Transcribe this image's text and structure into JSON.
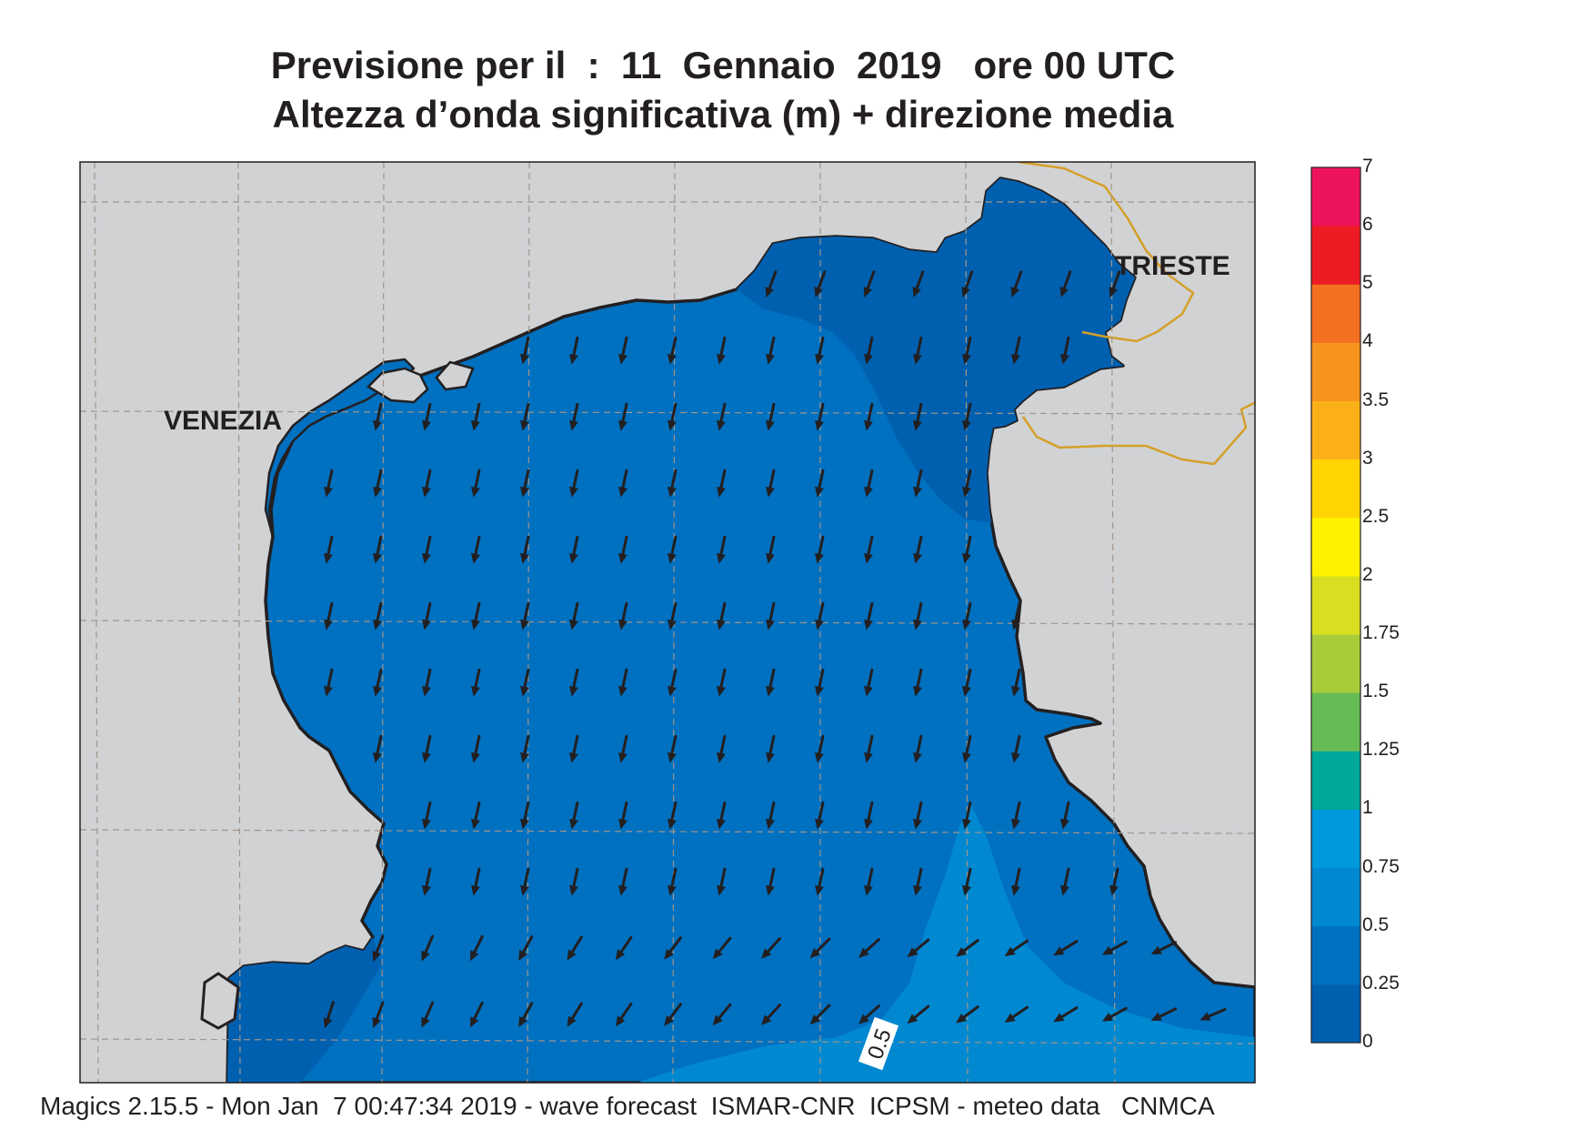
{
  "title_line1": "Previsione per il  :  11  Gennaio  2019   ore 00 UTC",
  "title_line2": "Altezza d’onda significativa (m) + direzione media",
  "footer": "Magics 2.15.5 - Mon Jan  7 00:47:34 2019 - wave forecast  ISMAR-CNR  ICPSM - meteo data   CNMCA",
  "cities": [
    {
      "name": "VENEZIA"
    },
    {
      "name": "TRIESTE"
    }
  ],
  "contour_label": "0.5",
  "wave_direction_default": "SSW",
  "colorbar": {
    "levels": [
      "0",
      "0.25",
      "0.5",
      "0.75",
      "1",
      "1.25",
      "1.5",
      "1.75",
      "2",
      "2.5",
      "3",
      "3.5",
      "4",
      "5",
      "6",
      "7"
    ],
    "colors": [
      "#0060b0",
      "#0070c0",
      "#0088d0",
      "#0098dc",
      "#00a89c",
      "#66bb55",
      "#a6cc3a",
      "#d8de20",
      "#fff200",
      "#ffd400",
      "#fbb018",
      "#f7941d",
      "#f37021",
      "#ed1c24",
      "#ed145b"
    ]
  },
  "colors": {
    "land": "#d1d2d4",
    "sea_0_025": "#0060b0",
    "sea_025_05": "#0070c0",
    "sea_05_075": "#0088d0",
    "coast": "#231f20",
    "border": "#d4a02a",
    "grid": "#a0968c"
  }
}
